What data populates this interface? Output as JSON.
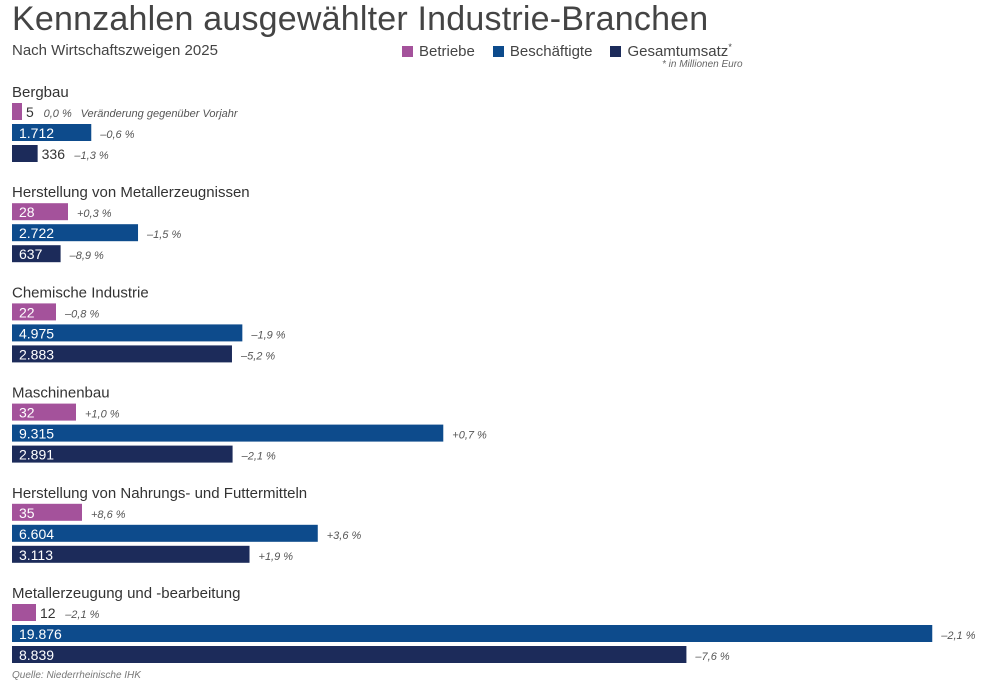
{
  "header": {
    "title": "Kennzahlen ausgewählter Industrie-Branchen",
    "subtitle": "Nach Wirtschaftszweigen 2025",
    "note": "* in Millionen Euro",
    "source": "Quelle: Niederrheinische IHK"
  },
  "legend": [
    {
      "label": "Betriebe",
      "color": "#a4529b",
      "sup": ""
    },
    {
      "label": "Beschäftigte",
      "color": "#0d4b8c",
      "sup": ""
    },
    {
      "label": "Gesamtumsatz",
      "color": "#1c2b5a",
      "sup": "*"
    }
  ],
  "chart_data": {
    "type": "bar",
    "orientation": "horizontal",
    "title": "Kennzahlen ausgewählter Industrie-Branchen",
    "subtitle": "Nach Wirtschaftszweigen 2025",
    "change_note": "Veränderung gegenüber Vorjahr",
    "categories": [
      "Bergbau",
      "Herstellung von Metallerzeugnissen",
      "Chemische Industrie",
      "Maschinenbau",
      "Herstellung von Nahrungs- und Futtermitteln",
      "Metallerzeugung und -bearbeitung"
    ],
    "series": [
      {
        "name": "Betriebe",
        "color": "#a4529b",
        "values": [
          5,
          28,
          22,
          32,
          35,
          12
        ],
        "labels": [
          "5",
          "28",
          "22",
          "32",
          "35",
          "12"
        ],
        "changes": [
          "0,0 %",
          "+0,3 %",
          "–0,8 %",
          "+1,0 %",
          "+8,6 %",
          "–2,1 %"
        ]
      },
      {
        "name": "Beschäftigte",
        "color": "#0d4b8c",
        "values": [
          1712,
          2722,
          4975,
          9315,
          6604,
          19876
        ],
        "labels": [
          "1.712",
          "2.722",
          "4.975",
          "9.315",
          "6.604",
          "19.876"
        ],
        "changes": [
          "–0,6 %",
          "–1,5 %",
          "–1,9 %",
          "+0,7 %",
          "+3,6 %",
          "–2,1 %"
        ]
      },
      {
        "name": "Gesamtumsatz",
        "color": "#1c2b5a",
        "values": [
          336,
          637,
          2883,
          2891,
          3113,
          8839
        ],
        "labels": [
          "336",
          "637",
          "2.883",
          "2.891",
          "3.113",
          "8.839"
        ],
        "changes": [
          "–1,3 %",
          "–8,9 %",
          "–5,2 %",
          "–2,1 %",
          "+1,9 %",
          "–7,6 %"
        ]
      }
    ],
    "grid": false
  }
}
